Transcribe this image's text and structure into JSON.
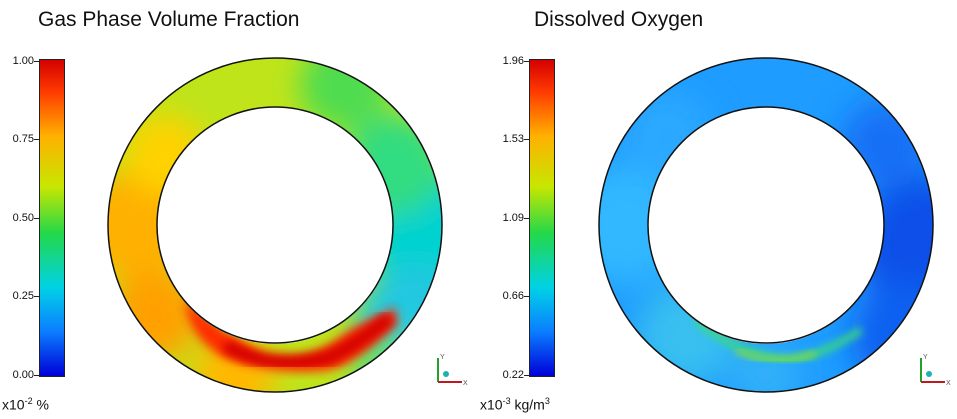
{
  "panels": [
    {
      "title": "Gas Phase Volume Fraction",
      "colorbar": {
        "ticks": [
          "1.00",
          "0.75",
          "0.50",
          "0.25",
          "0.00"
        ],
        "units_base": "x10",
        "units_exp": "-2",
        "units_unit": "%",
        "units_unit_exp": ""
      }
    },
    {
      "title": "Dissolved Oxygen",
      "colorbar": {
        "ticks": [
          "1.96",
          "1.53",
          "1.09",
          "0.66",
          "0.22"
        ],
        "units_base": "x10",
        "units_exp": "-3",
        "units_unit": "kg/m",
        "units_unit_exp": "3"
      }
    }
  ],
  "axis_triad": {
    "y_label": "Y",
    "x_label": "X"
  },
  "colors": {
    "colormap": [
      "#0000d8",
      "#0b7dff",
      "#00d2e6",
      "#22d84a",
      "#c8e600",
      "#ffb000",
      "#ff3a00",
      "#d40000"
    ]
  }
}
